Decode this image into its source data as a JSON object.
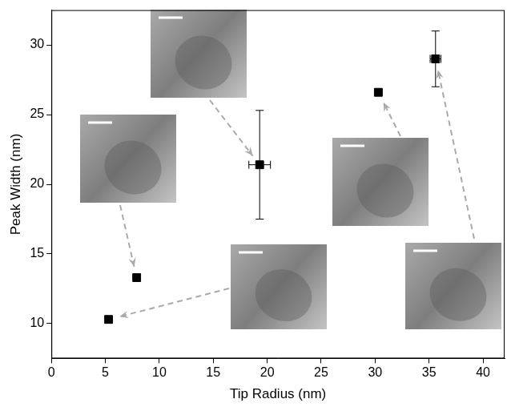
{
  "chart_data": {
    "type": "scatter",
    "x_label": "Tip Radius (nm)",
    "y_label": "Peak Width (nm)",
    "x": [
      5.3,
      7.9,
      19.3,
      30.3,
      35.6
    ],
    "values": [
      10.3,
      13.3,
      21.4,
      26.6,
      29.0
    ],
    "x_error": [
      null,
      null,
      1.0,
      null,
      0.5
    ],
    "y_error": [
      null,
      null,
      3.9,
      null,
      2.0
    ],
    "color": "#000000",
    "marker": "square",
    "xlim": [
      0,
      42
    ],
    "xticks": [
      0,
      5,
      10,
      15,
      20,
      25,
      30,
      35,
      40
    ],
    "ylim": [
      7.5,
      32.5
    ],
    "yticks": [
      10,
      15,
      20,
      25,
      30
    ],
    "grid": false
  }
}
